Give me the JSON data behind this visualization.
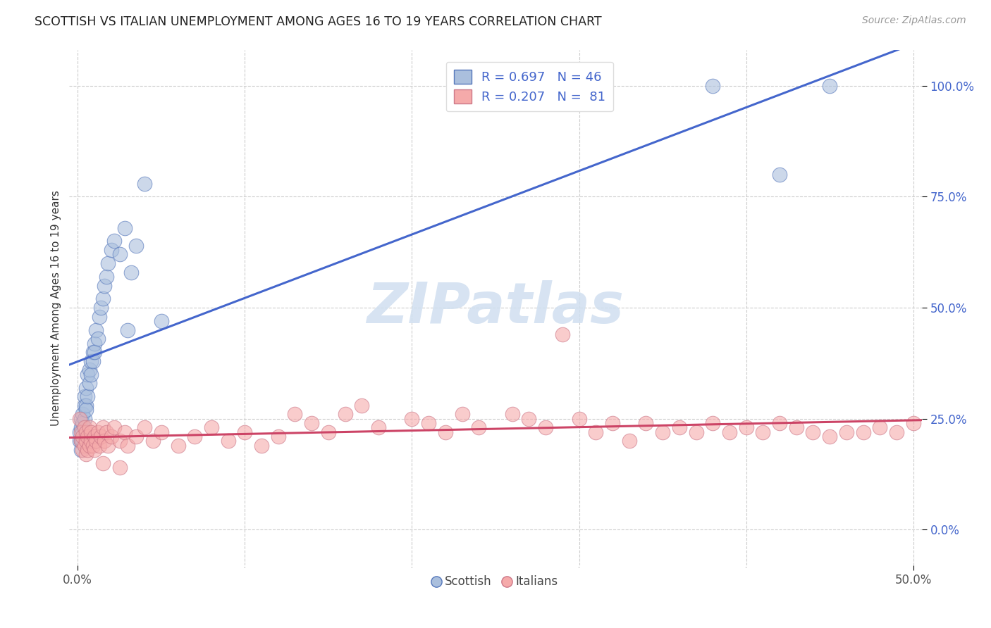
{
  "title": "SCOTTISH VS ITALIAN UNEMPLOYMENT AMONG AGES 16 TO 19 YEARS CORRELATION CHART",
  "source": "Source: ZipAtlas.com",
  "ylabel": "Unemployment Among Ages 16 to 19 years",
  "legend_R_blue": "R = 0.697",
  "legend_N_blue": "N = 46",
  "legend_R_pink": "R = 0.207",
  "legend_N_pink": "N =  81",
  "blue_fill": "#aabfdd",
  "blue_edge": "#5577bb",
  "blue_line": "#4466cc",
  "pink_fill": "#f5aaaa",
  "pink_edge": "#cc7788",
  "pink_line": "#cc4466",
  "watermark_color": "#d0dff0",
  "scottish_x": [
    0.001,
    0.001,
    0.002,
    0.002,
    0.002,
    0.002,
    0.003,
    0.003,
    0.003,
    0.003,
    0.004,
    0.004,
    0.004,
    0.005,
    0.005,
    0.005,
    0.006,
    0.006,
    0.007,
    0.007,
    0.008,
    0.008,
    0.009,
    0.009,
    0.01,
    0.01,
    0.011,
    0.012,
    0.013,
    0.014,
    0.015,
    0.016,
    0.017,
    0.018,
    0.02,
    0.022,
    0.025,
    0.028,
    0.03,
    0.032,
    0.035,
    0.04,
    0.05,
    0.38,
    0.42,
    0.45
  ],
  "scottish_y": [
    0.2,
    0.22,
    0.18,
    0.25,
    0.2,
    0.23,
    0.22,
    0.26,
    0.2,
    0.24,
    0.28,
    0.3,
    0.25,
    0.28,
    0.32,
    0.27,
    0.35,
    0.3,
    0.33,
    0.36,
    0.38,
    0.35,
    0.4,
    0.38,
    0.42,
    0.4,
    0.45,
    0.43,
    0.48,
    0.5,
    0.52,
    0.55,
    0.57,
    0.6,
    0.63,
    0.65,
    0.62,
    0.68,
    0.45,
    0.58,
    0.64,
    0.78,
    0.47,
    1.0,
    0.8,
    1.0
  ],
  "italian_x": [
    0.001,
    0.002,
    0.002,
    0.003,
    0.003,
    0.004,
    0.004,
    0.005,
    0.005,
    0.005,
    0.006,
    0.006,
    0.007,
    0.007,
    0.008,
    0.008,
    0.009,
    0.01,
    0.01,
    0.011,
    0.012,
    0.013,
    0.014,
    0.015,
    0.016,
    0.017,
    0.018,
    0.02,
    0.022,
    0.025,
    0.028,
    0.03,
    0.035,
    0.04,
    0.045,
    0.05,
    0.06,
    0.07,
    0.08,
    0.09,
    0.1,
    0.11,
    0.12,
    0.13,
    0.14,
    0.15,
    0.16,
    0.17,
    0.18,
    0.2,
    0.21,
    0.22,
    0.23,
    0.24,
    0.26,
    0.27,
    0.28,
    0.29,
    0.3,
    0.31,
    0.32,
    0.33,
    0.34,
    0.35,
    0.36,
    0.37,
    0.38,
    0.39,
    0.4,
    0.41,
    0.42,
    0.43,
    0.44,
    0.45,
    0.46,
    0.47,
    0.48,
    0.49,
    0.5,
    0.015,
    0.025
  ],
  "italian_y": [
    0.25,
    0.2,
    0.22,
    0.18,
    0.21,
    0.19,
    0.23,
    0.17,
    0.2,
    0.22,
    0.18,
    0.21,
    0.19,
    0.23,
    0.2,
    0.22,
    0.19,
    0.21,
    0.18,
    0.2,
    0.22,
    0.19,
    0.21,
    0.23,
    0.2,
    0.22,
    0.19,
    0.21,
    0.23,
    0.2,
    0.22,
    0.19,
    0.21,
    0.23,
    0.2,
    0.22,
    0.19,
    0.21,
    0.23,
    0.2,
    0.22,
    0.19,
    0.21,
    0.26,
    0.24,
    0.22,
    0.26,
    0.28,
    0.23,
    0.25,
    0.24,
    0.22,
    0.26,
    0.23,
    0.26,
    0.25,
    0.23,
    0.44,
    0.25,
    0.22,
    0.24,
    0.2,
    0.24,
    0.22,
    0.23,
    0.22,
    0.24,
    0.22,
    0.23,
    0.22,
    0.24,
    0.23,
    0.22,
    0.21,
    0.22,
    0.22,
    0.23,
    0.22,
    0.24,
    0.15,
    0.14
  ],
  "xlim": [
    -0.005,
    0.505
  ],
  "ylim": [
    -0.08,
    1.08
  ],
  "xtick_positions": [
    0.0,
    0.5
  ],
  "xtick_labels": [
    "0.0%",
    "50.0%"
  ],
  "ytick_positions": [
    0.0,
    0.25,
    0.5,
    0.75,
    1.0
  ],
  "ytick_labels": [
    "0.0%",
    "25.0%",
    "50.0%",
    "75.0%",
    "100.0%"
  ],
  "figsize": [
    14.06,
    8.92
  ],
  "dpi": 100
}
